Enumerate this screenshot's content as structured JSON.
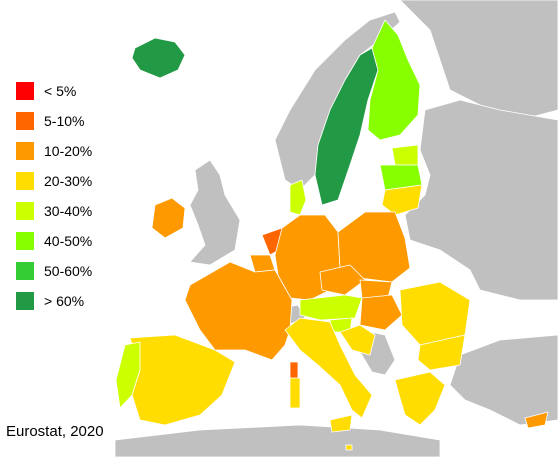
{
  "legend": {
    "items": [
      {
        "label": "< 5%",
        "color": "#ff0000"
      },
      {
        "label": "5-10%",
        "color": "#ff6600"
      },
      {
        "label": "10-20%",
        "color": "#ff9900"
      },
      {
        "label": "20-30%",
        "color": "#ffdd00"
      },
      {
        "label": "30-40%",
        "color": "#ccff00"
      },
      {
        "label": "40-50%",
        "color": "#88ff00"
      },
      {
        "label": "50-60%",
        "color": "#33cc33"
      },
      {
        "label": "> 60%",
        "color": "#229944"
      }
    ]
  },
  "colors": {
    "non_eu": "#c0c0c0",
    "border": "#ffffff",
    "background": "#ffffff"
  },
  "source": "Eurostat, 2020"
}
